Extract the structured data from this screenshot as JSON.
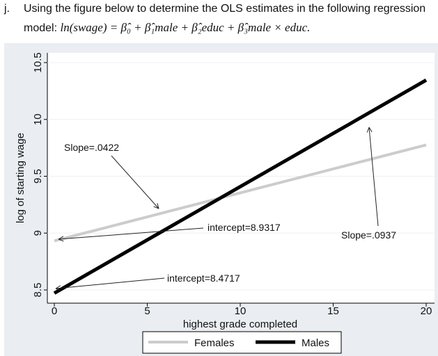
{
  "question": {
    "number": "j.",
    "line1": "Using the figure below to determine the OLS estimates in the following regression",
    "line2_prefix": "model: ",
    "equation": "ln(swage) = β̂₀ + β̂₁male + β̂₂educ + β̂₃male × educ."
  },
  "chart_data": {
    "type": "line",
    "title": "",
    "xlabel": "highest grade completed",
    "ylabel": "log of starting wage",
    "xlim": [
      0,
      20
    ],
    "ylim": [
      8.5,
      10.5
    ],
    "xticks": [
      "0",
      "5",
      "10",
      "15",
      "20"
    ],
    "yticks": [
      "8.5",
      "9",
      "9.5",
      "10",
      "10.5"
    ],
    "grid": false,
    "legend_placement": "bottom",
    "series": [
      {
        "name": "Females",
        "color": "#cccccc",
        "x": [
          0,
          20
        ],
        "y": [
          8.9317,
          9.7757
        ]
      },
      {
        "name": "Males",
        "color": "#000000",
        "x": [
          0,
          20
        ],
        "y": [
          8.4717,
          10.3457
        ]
      }
    ],
    "annotations": [
      {
        "text": "Slope=.0422",
        "target": [
          5.5,
          9.25
        ]
      },
      {
        "text": "intercept=8.9317",
        "target": [
          0.1,
          8.93
        ]
      },
      {
        "text": "Slope=.0937",
        "target": [
          17,
          10.9
        ]
      },
      {
        "text": "intercept=8.4717",
        "target": [
          0.1,
          8.47
        ]
      }
    ]
  }
}
